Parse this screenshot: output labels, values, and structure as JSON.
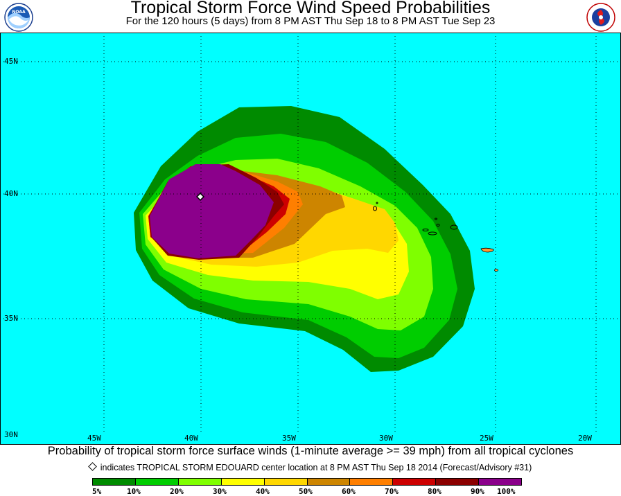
{
  "header": {
    "title": "Tropical Storm Force Wind Speed Probabilities",
    "subtitle": "For the 120 hours (5 days) from 8 PM AST Thu Sep 18 to 8 PM AST Tue Sep 23"
  },
  "logos": {
    "left": "noaa-logo",
    "right": "nws-logo"
  },
  "map": {
    "ocean_color": "#00ffff",
    "latitude_labels": [
      "45N",
      "40N",
      "35N",
      "30N"
    ],
    "longitude_labels": [
      "45W",
      "40W",
      "35W",
      "30W",
      "25W",
      "20W"
    ],
    "storm_center": {
      "lat": 39.9,
      "lon": -40.0
    }
  },
  "caption": "Probability of tropical storm force surface winds (1-minute average >= 39 mph) from all tropical cyclones",
  "note": "indicates TROPICAL STORM EDOUARD center location at 8 PM AST Thu Sep 18 2014 (Forecast/Advisory #31)",
  "legend": {
    "labels": [
      "5%",
      "10%",
      "20%",
      "30%",
      "40%",
      "50%",
      "60%",
      "70%",
      "80%",
      "90%",
      "100%"
    ],
    "colors": [
      "#008b00",
      "#00cd00",
      "#7fff00",
      "#ffff00",
      "#ffd700",
      "#cd8500",
      "#ff7f00",
      "#cd0000",
      "#8b0000",
      "#8b008b"
    ]
  }
}
